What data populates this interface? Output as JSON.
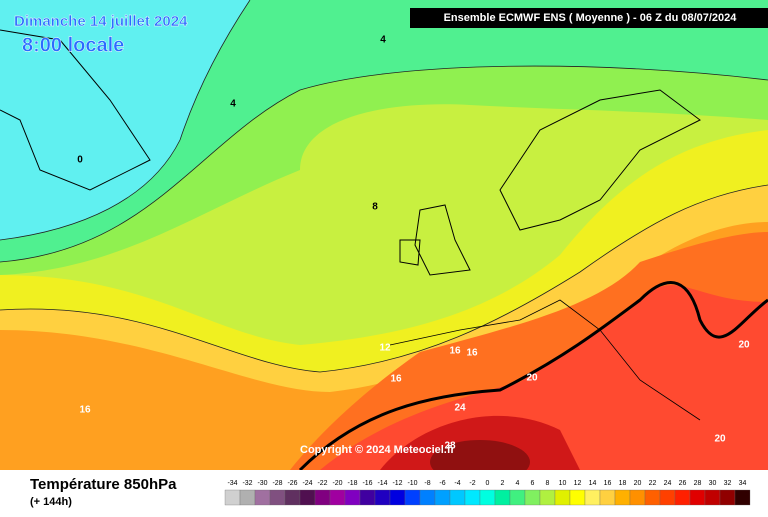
{
  "header": {
    "date": "Dimanche 14 juillet 2024",
    "time": "8:00 locale",
    "run": "Ensemble ECMWF ENS  ( Moyenne )  -  06 Z du 08/07/2024"
  },
  "copyright": "Copyright © 2024 Meteociel.fr",
  "contour_labels": [
    4,
    4,
    0,
    8,
    12,
    16,
    16,
    16,
    16,
    20,
    24,
    28,
    20,
    20
  ],
  "footer": {
    "title": "Température 850hPa",
    "lead": "(+ 144h)"
  },
  "legend": {
    "values": [
      -34,
      -32,
      -30,
      -28,
      -26,
      -24,
      -22,
      -20,
      -18,
      -16,
      -14,
      -12,
      -10,
      -8,
      -6,
      -4,
      -2,
      0,
      2,
      4,
      6,
      8,
      10,
      12,
      14,
      16,
      18,
      20,
      22,
      24,
      26,
      28,
      30,
      32,
      34
    ],
    "colors": [
      "#d0d0d0",
      "#b0b0b0",
      "#a070a0",
      "#805080",
      "#603060",
      "#501050",
      "#800080",
      "#a000a0",
      "#8000c0",
      "#4000a0",
      "#2000c0",
      "#0000e0",
      "#0040ff",
      "#0080ff",
      "#00a0ff",
      "#00c8ff",
      "#00e8ff",
      "#00ffe0",
      "#00f0a0",
      "#40f080",
      "#80f060",
      "#b0f040",
      "#e0f000",
      "#ffff00",
      "#fff060",
      "#ffd040",
      "#ffb000",
      "#ff9000",
      "#ff6000",
      "#ff4000",
      "#ff2000",
      "#e00000",
      "#c00000",
      "#900000",
      "#300000"
    ]
  }
}
